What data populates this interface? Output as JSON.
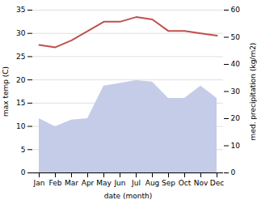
{
  "chart_data": {
    "type": "line",
    "categories": [
      "Jan",
      "Feb",
      "Mar",
      "Apr",
      "May",
      "Jun",
      "Jul",
      "Aug",
      "Sep",
      "Oct",
      "Nov",
      "Dec"
    ],
    "xlabel": "date (month)",
    "ylabel": "max temp (C)",
    "y2label": "med. precipitation (kg/m2)",
    "ylim": [
      0,
      35
    ],
    "yticks": [
      0,
      5,
      10,
      15,
      20,
      25,
      30,
      35
    ],
    "y2lim": [
      0,
      60
    ],
    "y2ticks": [
      0,
      10,
      20,
      30,
      40,
      50,
      60
    ],
    "grid": true,
    "series": [
      {
        "type": "area",
        "axis": "y2",
        "color": "#c5cce8",
        "values": [
          20.0,
          17.0,
          19.5,
          20.0,
          32.0,
          33.0,
          34.0,
          33.5,
          27.5,
          27.5,
          32.0,
          27.5
        ]
      },
      {
        "type": "line",
        "color": "#c0504d",
        "values": [
          27.5,
          27.0,
          28.5,
          30.5,
          32.5,
          32.5,
          33.5,
          33.0,
          30.5,
          30.5,
          30.0,
          29.5
        ]
      }
    ]
  }
}
